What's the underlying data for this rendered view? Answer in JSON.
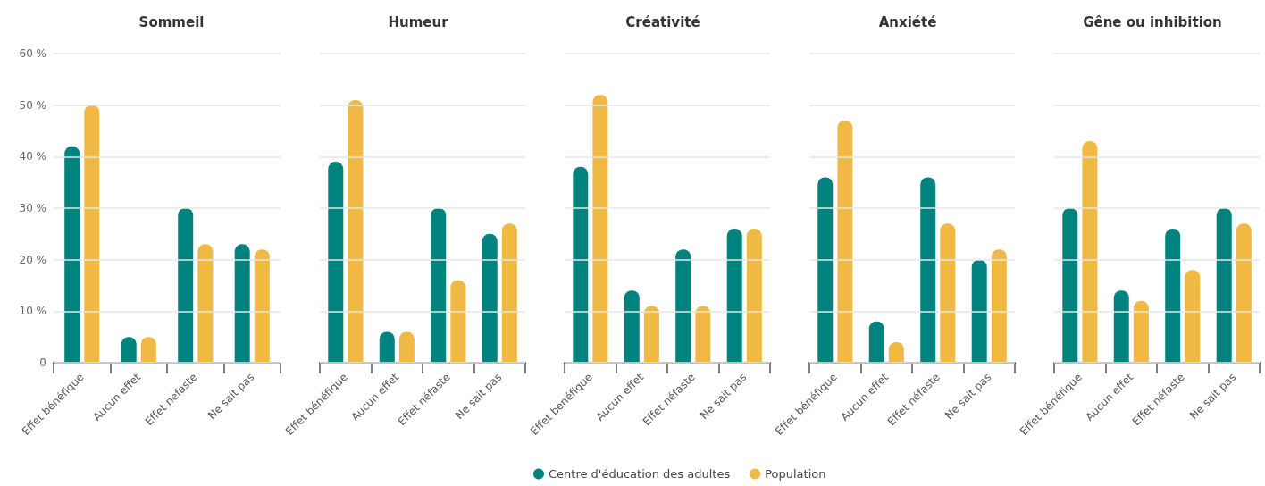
{
  "chart_data": [
    {
      "type": "bar",
      "title": "Sommeil",
      "categories": [
        "Effet bénéfique",
        "Aucun effet",
        "Effet néfaste",
        "Ne sait pas"
      ],
      "series": [
        {
          "color": "#00827f",
          "values": [
            42,
            5,
            30,
            23
          ]
        },
        {
          "color": "#efb944",
          "values": [
            50,
            5,
            23,
            22
          ]
        }
      ],
      "ylim": [
        0,
        60
      ],
      "yticks": [
        0,
        {
          "value": 10,
          "label": "10 %"
        },
        {
          "value": 20,
          "label": "20 %"
        },
        {
          "value": 30,
          "label": "30 %"
        },
        {
          "value": 40,
          "label": "40 %"
        },
        {
          "value": 50,
          "label": "50 %"
        },
        {
          "value": 60,
          "label": "60 %"
        }
      ],
      "grid": "y"
    },
    {
      "type": "bar",
      "title": "Humeur",
      "categories": [
        "Effet bénéfique",
        "Aucun effet",
        "Effet néfaste",
        "Ne sait pas"
      ],
      "series": [
        {
          "color": "#00827f",
          "values": [
            39,
            6,
            30,
            25
          ]
        },
        {
          "color": "#efb944",
          "values": [
            51,
            6,
            16,
            27
          ]
        }
      ],
      "ylim": [
        0,
        60
      ],
      "yticks": [
        0,
        10,
        20,
        30,
        40,
        50,
        60
      ],
      "grid": "y",
      "tick_labels": "x"
    },
    {
      "type": "bar",
      "title": "Créativité",
      "categories": [
        "Effet bénéfique",
        "Aucun effet",
        "Effet néfaste",
        "Ne sait pas"
      ],
      "series": [
        {
          "name": "Centre d'éducation des adultes",
          "color": "#00827f",
          "values": [
            38,
            14,
            22,
            26
          ]
        },
        {
          "name": "Population",
          "color": "#efb944",
          "values": [
            52,
            11,
            11,
            26
          ]
        }
      ],
      "ylim": [
        0,
        60
      ],
      "yticks": [
        0,
        10,
        20,
        30,
        40,
        50,
        60
      ],
      "grid": "y",
      "tick_labels": "x",
      "legend": "bottom"
    },
    {
      "type": "bar",
      "title": "Anxiété",
      "categories": [
        "Effet bénéfique",
        "Aucun effet",
        "Effet néfaste",
        "Ne sait pas"
      ],
      "series": [
        {
          "color": "#00827f",
          "values": [
            36,
            8,
            36,
            20
          ]
        },
        {
          "color": "#efb944",
          "values": [
            47,
            4,
            27,
            22
          ]
        }
      ],
      "ylim": [
        0,
        60
      ],
      "yticks": [
        0,
        10,
        20,
        30,
        40,
        50,
        60
      ],
      "grid": "y",
      "tick_labels": "x"
    },
    {
      "type": "bar",
      "title": "Gêne ou inhibition",
      "categories": [
        "Effet bénéfique",
        "Aucun effet",
        "Effet néfaste",
        "Ne sait pas"
      ],
      "series": [
        {
          "color": "#00827f",
          "values": [
            30,
            14,
            26,
            30
          ]
        },
        {
          "color": "#efb944",
          "values": [
            43,
            12,
            18,
            27
          ]
        }
      ],
      "ylim": [
        0,
        60
      ],
      "yticks": [
        0,
        10,
        20,
        30,
        40,
        50,
        60
      ],
      "grid": "y",
      "tick_labels": "x"
    }
  ]
}
